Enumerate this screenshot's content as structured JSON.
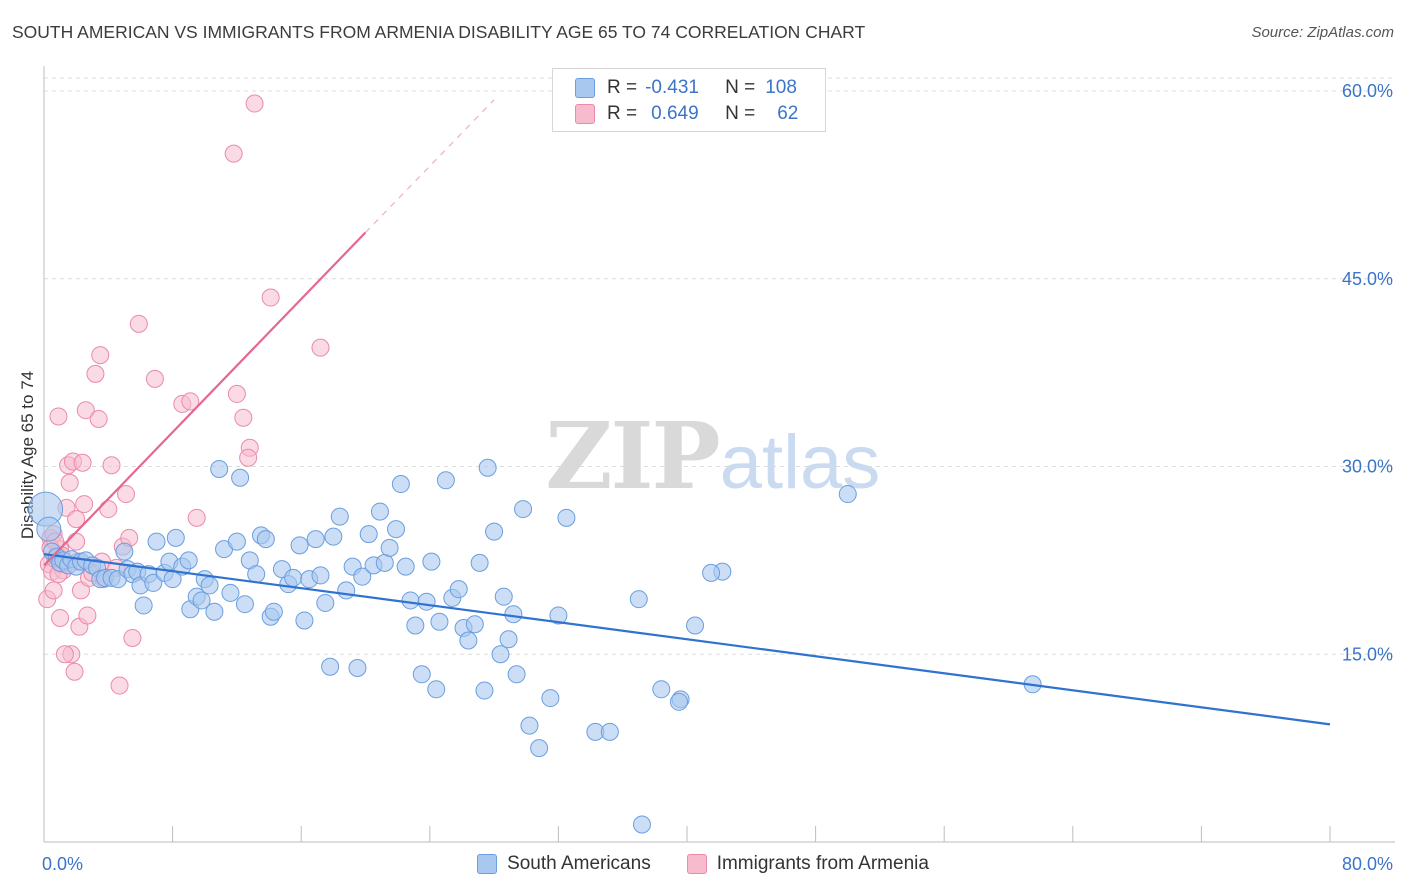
{
  "title": "SOUTH AMERICAN VS IMMIGRANTS FROM ARMENIA DISABILITY AGE 65 TO 74 CORRELATION CHART",
  "source": "Source: ZipAtlas.com",
  "watermark": {
    "part1": "ZIP",
    "part2": "atlas"
  },
  "legend": {
    "rows": [
      {
        "r_label": "R =",
        "r_value": "-0.431",
        "n_label": "N =",
        "n_value": "108"
      },
      {
        "r_label": "R =",
        "r_value": "0.649",
        "n_label": "N =",
        "n_value": "62"
      }
    ]
  },
  "colors": {
    "blue_fill": "#a9c8ef",
    "blue_stroke": "#6a9ee0",
    "blue_line": "#2f72d0",
    "pink_fill": "#f6bccd",
    "pink_stroke": "#ec8aa8",
    "pink_line": "#e5678e",
    "tick_text": "#3b74c9"
  },
  "chart_data": {
    "type": "scatter",
    "title": "SOUTH AMERICAN VS IMMIGRANTS FROM ARMENIA DISABILITY AGE 65 TO 74 CORRELATION CHART",
    "xlabel": "",
    "ylabel": "Disability Age 65 to 74",
    "xlim": [
      0,
      80
    ],
    "ylim": [
      0,
      62
    ],
    "x_tick_labels": [
      "0.0%",
      "80.0%"
    ],
    "y_ticks": [
      15,
      30,
      45,
      60
    ],
    "y_tick_labels": [
      "15.0%",
      "30.0%",
      "45.0%",
      "60.0%"
    ],
    "grid": true,
    "legend_position": "top-center",
    "series": [
      {
        "name": "South Americans",
        "color": "#a9c8ef",
        "points": [
          [
            0.1,
            26.6
          ],
          [
            0.3,
            25.0
          ],
          [
            0.5,
            23.2
          ],
          [
            0.8,
            22.8
          ],
          [
            1.0,
            22.3
          ],
          [
            1.2,
            22.5
          ],
          [
            1.5,
            22.1
          ],
          [
            1.7,
            22.6
          ],
          [
            2.0,
            22.0
          ],
          [
            2.3,
            22.4
          ],
          [
            2.6,
            22.5
          ],
          [
            3.0,
            22.1
          ],
          [
            3.3,
            21.9
          ],
          [
            3.5,
            21.0
          ],
          [
            3.8,
            21.1
          ],
          [
            4.2,
            21.1
          ],
          [
            4.6,
            21.0
          ],
          [
            5.0,
            23.2
          ],
          [
            5.2,
            21.8
          ],
          [
            5.5,
            21.4
          ],
          [
            5.8,
            21.6
          ],
          [
            6.0,
            20.5
          ],
          [
            6.2,
            18.9
          ],
          [
            6.5,
            21.4
          ],
          [
            6.8,
            20.7
          ],
          [
            7.0,
            24.0
          ],
          [
            7.5,
            21.5
          ],
          [
            7.8,
            22.4
          ],
          [
            8.0,
            21.0
          ],
          [
            8.2,
            24.3
          ],
          [
            8.6,
            22.0
          ],
          [
            9.0,
            22.5
          ],
          [
            9.1,
            18.6
          ],
          [
            9.5,
            19.6
          ],
          [
            9.8,
            19.3
          ],
          [
            10.0,
            21.0
          ],
          [
            10.3,
            20.5
          ],
          [
            10.6,
            18.4
          ],
          [
            10.9,
            29.8
          ],
          [
            11.2,
            23.4
          ],
          [
            11.6,
            19.9
          ],
          [
            12.0,
            24.0
          ],
          [
            12.2,
            29.1
          ],
          [
            12.5,
            19.0
          ],
          [
            12.8,
            22.5
          ],
          [
            13.2,
            21.4
          ],
          [
            13.5,
            24.5
          ],
          [
            13.8,
            24.2
          ],
          [
            14.1,
            18.0
          ],
          [
            14.3,
            18.4
          ],
          [
            14.8,
            21.8
          ],
          [
            15.2,
            20.6
          ],
          [
            15.5,
            21.1
          ],
          [
            15.9,
            23.7
          ],
          [
            16.2,
            17.7
          ],
          [
            16.5,
            21.0
          ],
          [
            16.9,
            24.2
          ],
          [
            17.2,
            21.3
          ],
          [
            17.5,
            19.1
          ],
          [
            17.8,
            14.0
          ],
          [
            18.0,
            24.4
          ],
          [
            18.4,
            26.0
          ],
          [
            18.8,
            20.1
          ],
          [
            19.2,
            22.0
          ],
          [
            19.5,
            13.9
          ],
          [
            19.8,
            21.2
          ],
          [
            20.2,
            24.6
          ],
          [
            20.5,
            22.1
          ],
          [
            20.9,
            26.4
          ],
          [
            21.2,
            22.3
          ],
          [
            21.5,
            23.5
          ],
          [
            21.9,
            25.0
          ],
          [
            22.2,
            28.6
          ],
          [
            22.5,
            22.0
          ],
          [
            22.8,
            19.3
          ],
          [
            23.1,
            17.3
          ],
          [
            23.5,
            13.4
          ],
          [
            23.8,
            19.2
          ],
          [
            24.1,
            22.4
          ],
          [
            24.4,
            12.2
          ],
          [
            24.6,
            17.6
          ],
          [
            25.0,
            28.9
          ],
          [
            25.4,
            19.5
          ],
          [
            25.8,
            20.2
          ],
          [
            26.1,
            17.1
          ],
          [
            26.4,
            16.1
          ],
          [
            26.8,
            17.4
          ],
          [
            27.1,
            22.3
          ],
          [
            27.4,
            12.1
          ],
          [
            27.6,
            29.9
          ],
          [
            28.0,
            24.8
          ],
          [
            28.4,
            15.0
          ],
          [
            28.6,
            19.6
          ],
          [
            28.9,
            16.2
          ],
          [
            29.2,
            18.2
          ],
          [
            29.4,
            13.4
          ],
          [
            29.8,
            26.6
          ],
          [
            30.2,
            9.3
          ],
          [
            30.8,
            7.5
          ],
          [
            31.5,
            11.5
          ],
          [
            32.0,
            18.1
          ],
          [
            32.5,
            25.9
          ],
          [
            34.3,
            8.8
          ],
          [
            35.2,
            8.8
          ],
          [
            37.0,
            19.4
          ],
          [
            38.4,
            12.2
          ],
          [
            39.6,
            11.4
          ],
          [
            40.5,
            17.3
          ],
          [
            42.2,
            21.6
          ],
          [
            50.0,
            27.8
          ],
          [
            61.5,
            12.6
          ],
          [
            39.5,
            11.2
          ],
          [
            37.2,
            1.4
          ],
          [
            41.5,
            21.5
          ]
        ]
      },
      {
        "name": "Immigrants from Armenia",
        "color": "#f6bccd",
        "points": [
          [
            0.2,
            19.4
          ],
          [
            0.3,
            22.2
          ],
          [
            0.4,
            24.3
          ],
          [
            0.5,
            21.6
          ],
          [
            0.6,
            20.1
          ],
          [
            0.7,
            22.6
          ],
          [
            0.8,
            23.0
          ],
          [
            0.9,
            34.0
          ],
          [
            1.0,
            23.4
          ],
          [
            1.1,
            22.9
          ],
          [
            1.2,
            21.7
          ],
          [
            1.3,
            22.4
          ],
          [
            1.4,
            26.7
          ],
          [
            1.5,
            30.1
          ],
          [
            1.6,
            28.7
          ],
          [
            1.7,
            15.0
          ],
          [
            1.8,
            30.4
          ],
          [
            1.9,
            13.6
          ],
          [
            2.0,
            25.8
          ],
          [
            2.1,
            22.4
          ],
          [
            2.2,
            17.2
          ],
          [
            2.3,
            20.1
          ],
          [
            2.4,
            30.3
          ],
          [
            2.5,
            27.0
          ],
          [
            2.6,
            34.5
          ],
          [
            2.7,
            18.1
          ],
          [
            2.8,
            21.1
          ],
          [
            3.0,
            21.5
          ],
          [
            3.2,
            37.4
          ],
          [
            3.4,
            33.8
          ],
          [
            3.5,
            38.9
          ],
          [
            3.6,
            22.4
          ],
          [
            3.7,
            21.0
          ],
          [
            4.0,
            26.6
          ],
          [
            4.2,
            30.1
          ],
          [
            4.5,
            21.9
          ],
          [
            4.7,
            12.5
          ],
          [
            4.9,
            23.6
          ],
          [
            5.1,
            27.8
          ],
          [
            5.3,
            24.3
          ],
          [
            5.5,
            16.3
          ],
          [
            5.9,
            41.4
          ],
          [
            6.9,
            37.0
          ],
          [
            8.6,
            35.0
          ],
          [
            9.1,
            35.2
          ],
          [
            9.5,
            25.9
          ],
          [
            11.8,
            55.0
          ],
          [
            12.0,
            35.8
          ],
          [
            12.4,
            33.9
          ],
          [
            12.8,
            31.5
          ],
          [
            12.7,
            30.7
          ],
          [
            13.1,
            59.0
          ],
          [
            14.1,
            43.5
          ],
          [
            17.2,
            39.5
          ],
          [
            1.0,
            17.9
          ],
          [
            1.3,
            15.0
          ],
          [
            2.0,
            24.0
          ],
          [
            0.6,
            24.6
          ],
          [
            0.4,
            23.5
          ],
          [
            1.1,
            22.2
          ],
          [
            0.9,
            21.4
          ],
          [
            0.7,
            24.0
          ]
        ]
      }
    ],
    "trend_lines": [
      {
        "series": "South Americans",
        "from": [
          0,
          23.0
        ],
        "to": [
          80,
          9.4
        ]
      },
      {
        "series": "Immigrants from Armenia",
        "from": [
          0,
          22.1
        ],
        "to": [
          20,
          48.7
        ],
        "dashed_extension_to": [
          28,
          59.3
        ]
      }
    ]
  },
  "bottom_legend": [
    {
      "label": "South Americans"
    },
    {
      "label": "Immigrants from Armenia"
    }
  ]
}
